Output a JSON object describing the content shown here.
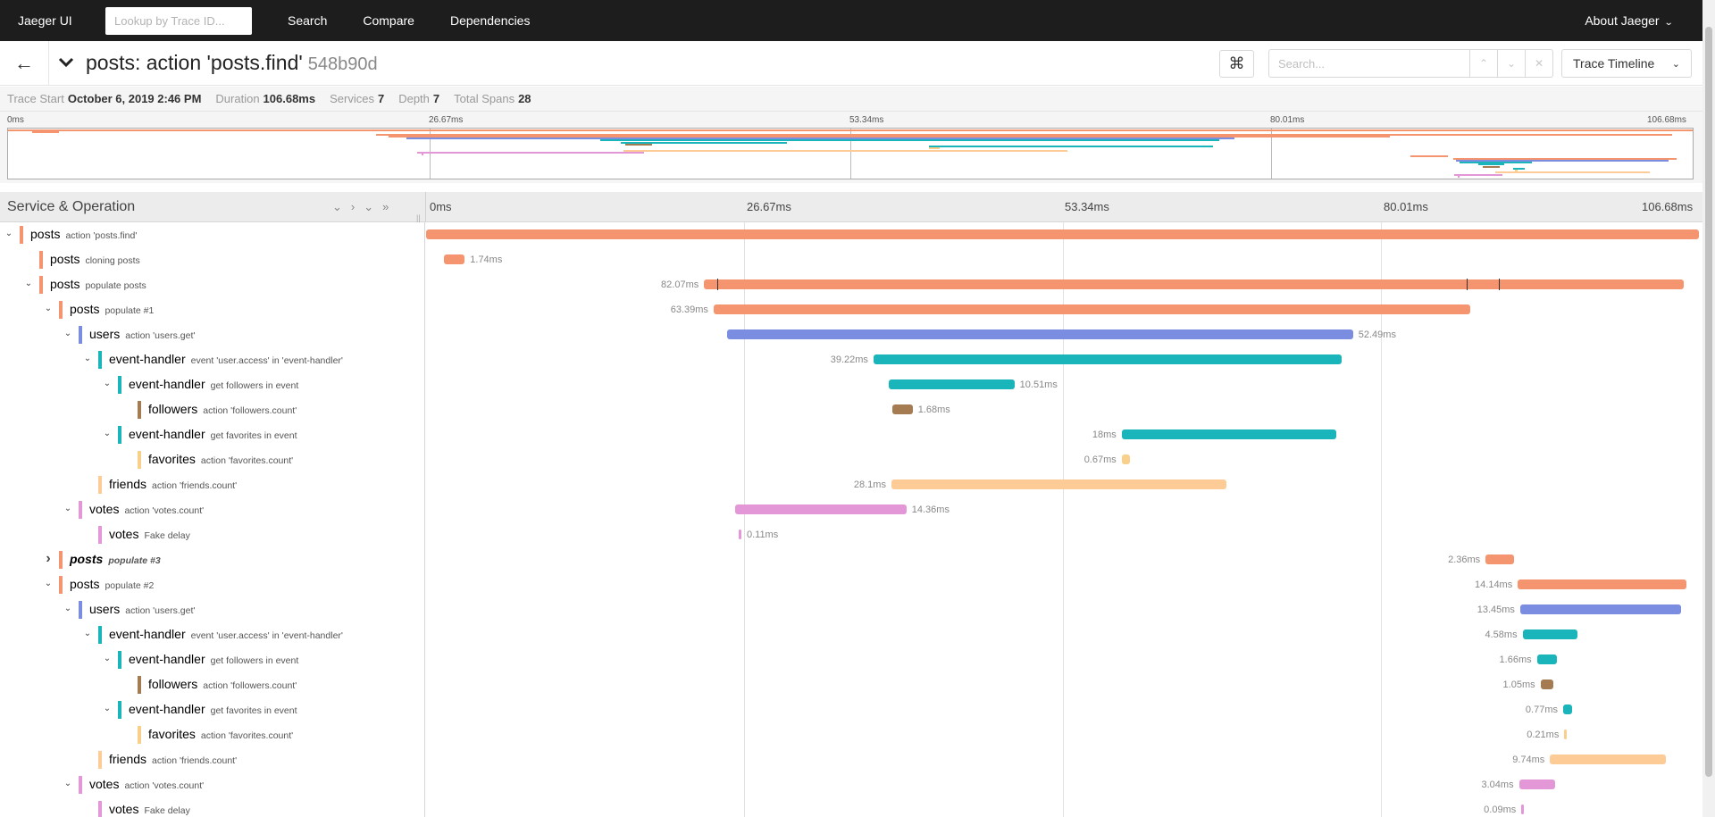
{
  "nav": {
    "brand": "Jaeger UI",
    "lookup_placeholder": "Lookup by Trace ID...",
    "links": [
      "Search",
      "Compare",
      "Dependencies"
    ],
    "about": "About Jaeger"
  },
  "trace": {
    "title": "posts: action 'posts.find'",
    "id": "548b90d",
    "search_placeholder": "Search...",
    "view_mode": "Trace Timeline"
  },
  "summary": {
    "trace_start_label": "Trace Start",
    "trace_start": "October 6, 2019 2:46 PM",
    "duration_label": "Duration",
    "duration": "106.68ms",
    "services_label": "Services",
    "services": "7",
    "depth_label": "Depth",
    "depth": "7",
    "total_spans_label": "Total Spans",
    "total_spans": "28"
  },
  "ticks": [
    "0ms",
    "26.67ms",
    "53.34ms",
    "80.01ms",
    "106.68ms"
  ],
  "header": {
    "service_operation": "Service & Operation"
  },
  "colors": {
    "posts": "#f4956f",
    "users": "#7b8de0",
    "event-handler": "#1ab5bb",
    "followers": "#a57b52",
    "favorites": "#f8cf8b",
    "friends": "#fdcb96",
    "votes": "#e497d6"
  },
  "spans": [
    {
      "svc": "posts",
      "op": "action 'posts.find'",
      "depth": 0,
      "toggle": "open",
      "start": 0,
      "dur": 106.68,
      "label": ""
    },
    {
      "svc": "posts",
      "op": "cloning posts",
      "depth": 1,
      "toggle": "none",
      "start": 1.5,
      "dur": 1.74,
      "label": "1.74ms",
      "side": "right"
    },
    {
      "svc": "posts",
      "op": "populate posts",
      "depth": 1,
      "toggle": "open",
      "start": 23.3,
      "dur": 82.07,
      "label": "82.07ms",
      "side": "left"
    },
    {
      "svc": "posts",
      "op": "populate #1",
      "depth": 2,
      "toggle": "open",
      "start": 24.1,
      "dur": 63.39,
      "label": "63.39ms",
      "side": "left"
    },
    {
      "svc": "users",
      "op": "action 'users.get'",
      "depth": 3,
      "toggle": "open",
      "start": 25.2,
      "dur": 52.49,
      "label": "52.49ms",
      "side": "right"
    },
    {
      "svc": "event-handler",
      "op": "event 'user.access' in 'event-handler'",
      "depth": 4,
      "toggle": "open",
      "start": 37.5,
      "dur": 39.22,
      "label": "39.22ms",
      "side": "left"
    },
    {
      "svc": "event-handler",
      "op": "get followers in event",
      "depth": 5,
      "toggle": "open",
      "start": 38.8,
      "dur": 10.51,
      "label": "10.51ms",
      "side": "right"
    },
    {
      "svc": "followers",
      "op": "action 'followers.count'",
      "depth": 6,
      "toggle": "none",
      "start": 39.1,
      "dur": 1.68,
      "label": "1.68ms",
      "side": "right"
    },
    {
      "svc": "event-handler",
      "op": "get favorites in event",
      "depth": 5,
      "toggle": "open",
      "start": 58.3,
      "dur": 18,
      "label": "18ms",
      "side": "left"
    },
    {
      "svc": "favorites",
      "op": "action 'favorites.count'",
      "depth": 6,
      "toggle": "none",
      "start": 58.3,
      "dur": 0.67,
      "label": "0.67ms",
      "side": "left"
    },
    {
      "svc": "friends",
      "op": "action 'friends.count'",
      "depth": 4,
      "toggle": "none",
      "start": 39.0,
      "dur": 28.1,
      "label": "28.1ms",
      "side": "left"
    },
    {
      "svc": "votes",
      "op": "action 'votes.count'",
      "depth": 3,
      "toggle": "open",
      "start": 25.9,
      "dur": 14.36,
      "label": "14.36ms",
      "side": "right"
    },
    {
      "svc": "votes",
      "op": "Fake delay",
      "depth": 4,
      "toggle": "none",
      "start": 26.2,
      "dur": 0.11,
      "label": "0.11ms",
      "side": "right"
    },
    {
      "svc": "posts",
      "op": "populate #3",
      "depth": 2,
      "toggle": "closed",
      "bold": true,
      "start": 88.8,
      "dur": 2.36,
      "label": "2.36ms",
      "side": "left"
    },
    {
      "svc": "posts",
      "op": "populate #2",
      "depth": 2,
      "toggle": "open",
      "start": 91.5,
      "dur": 14.14,
      "label": "14.14ms",
      "side": "left"
    },
    {
      "svc": "users",
      "op": "action 'users.get'",
      "depth": 3,
      "toggle": "open",
      "start": 91.7,
      "dur": 13.45,
      "label": "13.45ms",
      "side": "left"
    },
    {
      "svc": "event-handler",
      "op": "event 'user.access' in 'event-handler'",
      "depth": 4,
      "toggle": "open",
      "start": 91.9,
      "dur": 4.58,
      "label": "4.58ms",
      "side": "left"
    },
    {
      "svc": "event-handler",
      "op": "get followers in event",
      "depth": 5,
      "toggle": "open",
      "start": 93.1,
      "dur": 1.66,
      "label": "1.66ms",
      "side": "left"
    },
    {
      "svc": "followers",
      "op": "action 'followers.count'",
      "depth": 6,
      "toggle": "none",
      "start": 93.4,
      "dur": 1.05,
      "label": "1.05ms",
      "side": "left"
    },
    {
      "svc": "event-handler",
      "op": "get favorites in event",
      "depth": 5,
      "toggle": "open",
      "start": 95.3,
      "dur": 0.77,
      "label": "0.77ms",
      "side": "left"
    },
    {
      "svc": "favorites",
      "op": "action 'favorites.count'",
      "depth": 6,
      "toggle": "none",
      "start": 95.4,
      "dur": 0.21,
      "label": "0.21ms",
      "side": "left"
    },
    {
      "svc": "friends",
      "op": "action 'friends.count'",
      "depth": 4,
      "toggle": "none",
      "start": 94.2,
      "dur": 9.74,
      "label": "9.74ms",
      "side": "left"
    },
    {
      "svc": "votes",
      "op": "action 'votes.count'",
      "depth": 3,
      "toggle": "open",
      "start": 91.6,
      "dur": 3.04,
      "label": "3.04ms",
      "side": "left"
    },
    {
      "svc": "votes",
      "op": "Fake delay",
      "depth": 4,
      "toggle": "none",
      "start": 91.8,
      "dur": 0.09,
      "label": "0.09ms",
      "side": "left"
    }
  ]
}
